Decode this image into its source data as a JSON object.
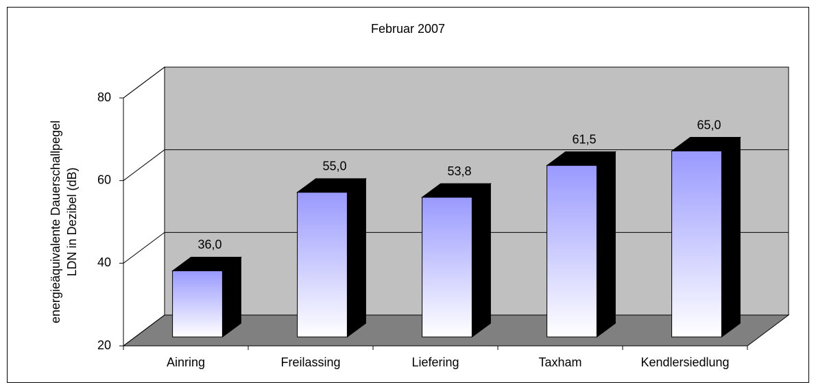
{
  "chart_data": {
    "type": "bar3d",
    "title": "Februar 2007",
    "ylabel": [
      "energieäquivalente Dauerschallpegel",
      "LDN in Dezibel (dB)"
    ],
    "categories": [
      "Ainring",
      "Freilassing",
      "Liefering",
      "Taxham",
      "Kendlersiedlung"
    ],
    "values": [
      36.0,
      55.0,
      53.8,
      61.5,
      65.0
    ],
    "value_labels": [
      "36,0",
      "55,0",
      "53,8",
      "61,5",
      "65,0"
    ],
    "color": "#9999ff",
    "ylim": [
      20,
      80
    ],
    "yticks": [
      20,
      40,
      60,
      80
    ],
    "grid": true
  }
}
